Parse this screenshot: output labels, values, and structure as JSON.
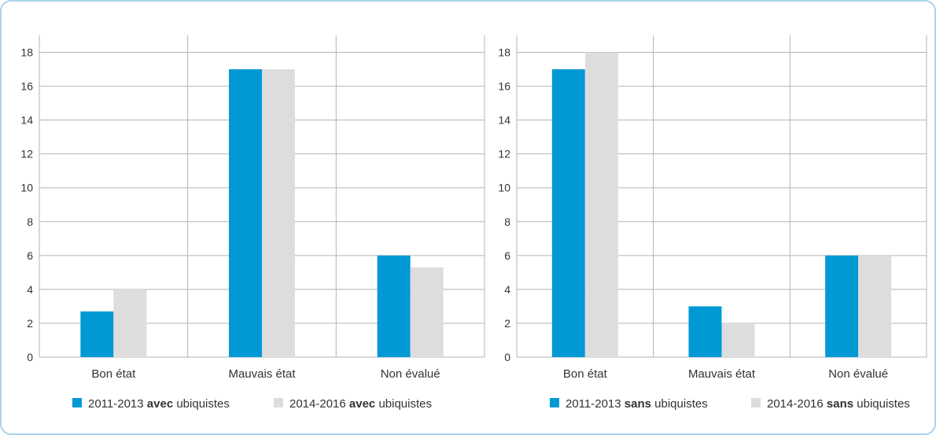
{
  "colors": {
    "series_a": "#0099d4",
    "series_b": "#dddddd",
    "grid": "#b5b5b5",
    "frame": "#a9d3ee"
  },
  "chart_data": [
    {
      "type": "bar",
      "categories": [
        "Bon état",
        "Mauvais état",
        "Non évalué"
      ],
      "series": [
        {
          "name_parts": [
            "2011-2013 ",
            "avec",
            " ubiquistes"
          ],
          "values": [
            2.7,
            17,
            6
          ]
        },
        {
          "name_parts": [
            "2014-2016 ",
            "avec",
            " ubiquistes"
          ],
          "values": [
            4,
            17,
            5.3
          ]
        }
      ],
      "ylim": [
        0,
        19
      ],
      "yticks": [
        0,
        2,
        4,
        6,
        8,
        10,
        12,
        14,
        16,
        18
      ],
      "grid": true,
      "legend": "bottom"
    },
    {
      "type": "bar",
      "categories": [
        "Bon état",
        "Mauvais état",
        "Non évalué"
      ],
      "series": [
        {
          "name_parts": [
            "2011-2013 ",
            "sans",
            " ubiquistes"
          ],
          "values": [
            17,
            3,
            6
          ]
        },
        {
          "name_parts": [
            "2014-2016 ",
            "sans",
            " ubiquistes"
          ],
          "values": [
            18,
            2,
            6
          ]
        }
      ],
      "ylim": [
        0,
        19
      ],
      "yticks": [
        0,
        2,
        4,
        6,
        8,
        10,
        12,
        14,
        16,
        18
      ],
      "grid": true,
      "legend": "bottom"
    }
  ]
}
